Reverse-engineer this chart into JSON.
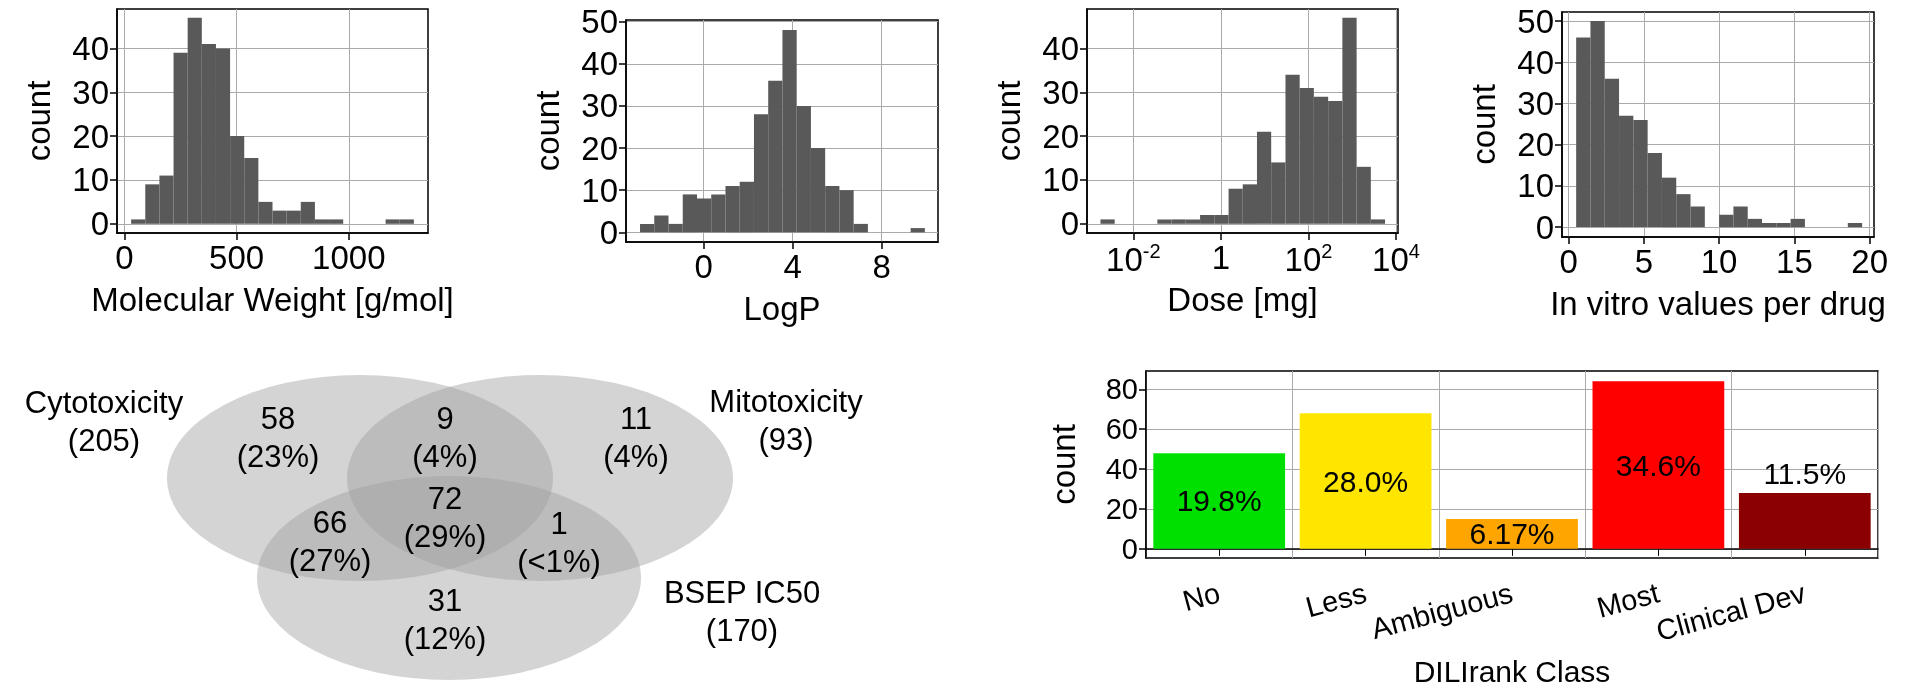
{
  "chart_data": [
    {
      "type": "histogram",
      "xlabel": "Molecular Weight [g/mol]",
      "ylabel": "count",
      "color": "#595959",
      "grid": true,
      "bins": [
        30,
        93,
        156,
        219,
        282,
        345,
        408,
        471,
        534,
        597,
        660,
        723,
        786,
        849,
        912,
        975,
        1038,
        1101,
        1164,
        1227,
        1290
      ],
      "values": [
        1,
        9,
        11,
        39,
        47,
        41,
        40,
        20,
        15,
        5,
        3,
        3,
        5,
        1,
        1,
        0,
        0,
        0,
        1,
        1
      ],
      "xlim": [
        -33,
        1353
      ],
      "xticks": [
        0,
        500,
        1000
      ],
      "ylim": [
        -2.1,
        49
      ],
      "yticks": [
        0,
        10,
        20,
        30,
        40
      ]
    },
    {
      "type": "histogram",
      "xlabel": "LogP",
      "ylabel": "count",
      "color": "#595959",
      "grid": true,
      "bins": [
        -2.86,
        -2.22,
        -1.58,
        -0.94,
        -0.3,
        0.34,
        0.98,
        1.62,
        2.26,
        2.9,
        3.54,
        4.18,
        4.82,
        5.46,
        6.1,
        6.74,
        7.38,
        8.02,
        8.66,
        9.3,
        9.94
      ],
      "values": [
        2,
        4,
        2,
        9,
        8,
        9,
        11,
        12,
        28,
        36,
        48,
        30,
        20,
        11,
        10,
        2,
        0,
        0,
        0,
        1
      ],
      "xlim": [
        -3.49,
        10.53
      ],
      "xticks": [
        0,
        4,
        8
      ],
      "ylim": [
        -2.3,
        50.4
      ],
      "yticks": [
        0,
        10,
        20,
        30,
        40,
        50
      ]
    },
    {
      "type": "histogram",
      "xlabel": "Dose [mg]",
      "ylabel": "count",
      "color": "#595959",
      "grid": true,
      "log": "x",
      "bins": [
        0.00178,
        0.00376,
        0.00794,
        0.0168,
        0.0355,
        0.075,
        0.158,
        0.335,
        0.708,
        1.5,
        3.16,
        6.68,
        14.1,
        29.9,
        63.1,
        133,
        282,
        596,
        1260,
        2660,
        5620
      ],
      "values": [
        1,
        0,
        0,
        0,
        1,
        1,
        1,
        2,
        2,
        8,
        9,
        21,
        14,
        34,
        31,
        29,
        28,
        47,
        13,
        1
      ],
      "xlim": [
        0.000877,
        11100
      ],
      "xticks": [
        {
          "value": 0.01,
          "label": "10$^{-2}$"
        },
        1,
        {
          "value": 100,
          "label": "10$^{2}$"
        },
        {
          "value": 10000,
          "label": "10$^{4}$"
        }
      ],
      "ylim": [
        -2.1,
        49
      ],
      "yticks": [
        0,
        10,
        20,
        30,
        40
      ]
    },
    {
      "type": "histogram",
      "xlabel": "In vitro values per drug",
      "ylabel": "count",
      "color": "#595959",
      "grid": true,
      "bins": [
        0.5,
        1.45,
        2.4,
        3.35,
        4.3,
        5.25,
        6.2,
        7.15,
        8.1,
        9.05,
        10,
        10.95,
        11.9,
        12.85,
        13.8,
        14.75,
        15.7,
        16.65,
        17.6,
        18.55,
        19.5
      ],
      "values": [
        46,
        50,
        36,
        27,
        26,
        18,
        12,
        8,
        5,
        0,
        3,
        5,
        2,
        1,
        1,
        2,
        0,
        0,
        0,
        1
      ],
      "xlim": [
        -0.44,
        20.29
      ],
      "xticks": [
        0,
        5,
        10,
        15,
        20
      ],
      "ylim": [
        -2.4,
        52.2
      ],
      "yticks": [
        0,
        10,
        20,
        30,
        40,
        50
      ]
    },
    {
      "type": "other",
      "series": [
        {
          "name": "Cytotoxicity"
        },
        {
          "name": "Mitotoxicity"
        },
        {
          "name": "BSEP IC50"
        }
      ],
      "value_labels": [
        "58",
        "9",
        "11",
        "66",
        "72",
        "1",
        "31"
      ],
      "annotations": [
        "(205)",
        "(93)",
        "(170)",
        "(23%)",
        "(4%)",
        "(4%)",
        "(27%)",
        "(29%)",
        "(<1%)",
        "(12%)"
      ]
    },
    {
      "type": "bar",
      "xlabel": "DILIrank Class",
      "ylabel": "count",
      "grid": true,
      "categories": [
        "No",
        "Less",
        "Ambiguous",
        "Most",
        "Clinical Dev"
      ],
      "values": [
        48,
        68,
        15,
        84,
        28
      ],
      "colors": [
        "#00e000",
        "#ffe600",
        "#ffa500",
        "#ff0000",
        "#8b0000"
      ],
      "annotations": [
        "19.8%",
        "28.0%",
        "6.17%",
        "34.6%",
        "11.5%"
      ],
      "ylim": [
        -4.6,
        89.2
      ],
      "yticks": [
        0,
        20,
        40,
        60,
        80
      ]
    }
  ]
}
